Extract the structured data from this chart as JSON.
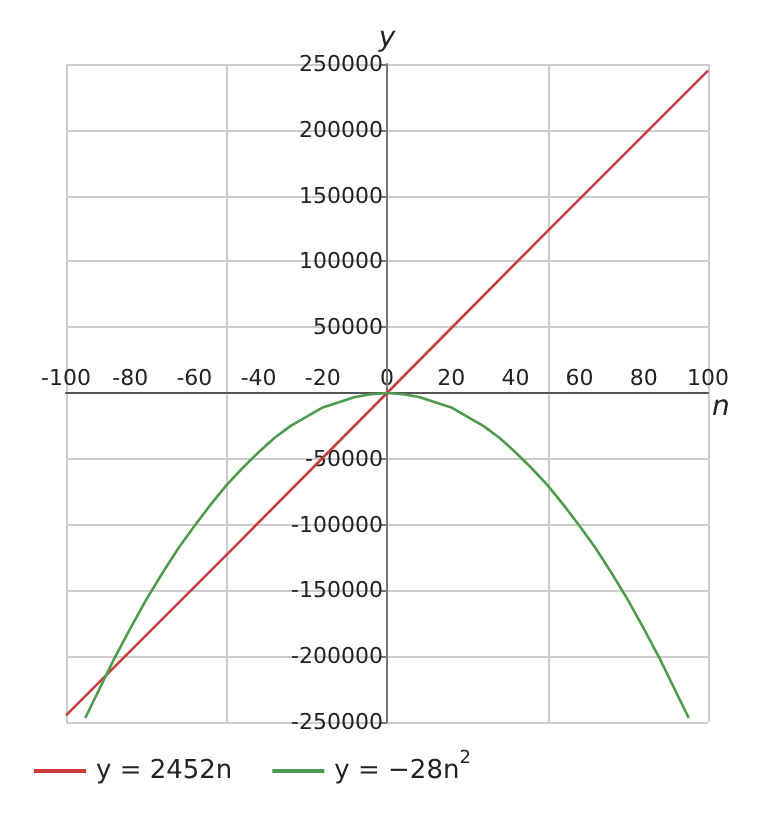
{
  "chart_data": {
    "type": "line",
    "xlabel": "n",
    "ylabel": "y",
    "xlim": [
      -100,
      100
    ],
    "xticks": [
      -100,
      -80,
      -60,
      -40,
      -20,
      0,
      20,
      40,
      60,
      80,
      100
    ],
    "ylim": [
      -250000,
      250000
    ],
    "yticks": [
      -250000,
      -200000,
      -150000,
      -100000,
      -50000,
      50000,
      100000,
      150000,
      200000,
      250000
    ],
    "series": [
      {
        "name": "y = 2452n",
        "color": "#c83c3c",
        "x": [
          -100,
          -50,
          0,
          50,
          100
        ],
        "values": [
          -245000,
          -123000,
          0,
          123000,
          245000
        ]
      },
      {
        "name": "y = −28n$^{2}$",
        "color": "#4c9a4c",
        "x": [
          -94,
          -90,
          -85,
          -80,
          -75,
          -70,
          -65,
          -60,
          -55,
          -50,
          -45,
          -40,
          -35,
          -30,
          -25,
          -20,
          -15,
          -10,
          -5,
          0,
          5,
          10,
          15,
          20,
          25,
          30,
          35,
          40,
          45,
          50,
          55,
          60,
          65,
          70,
          75,
          80,
          85,
          90,
          94
        ],
        "values": [
          -247000,
          -227000,
          -202000,
          -179000,
          -157000,
          -137000,
          -118000,
          -101000,
          -85000,
          -70000,
          -57000,
          -45000,
          -34000,
          -25000,
          -18000,
          -11000,
          -7000,
          -3000,
          -1000,
          0,
          -1000,
          -3000,
          -7000,
          -11000,
          -18000,
          -25000,
          -34000,
          -45000,
          -57000,
          -70000,
          -85000,
          -101000,
          -118000,
          -137000,
          -157000,
          -179000,
          -202000,
          -227000,
          -247000
        ]
      }
    ],
    "grid": true,
    "legend": "bottom",
    "marker": "none",
    "line_style": "solid"
  }
}
